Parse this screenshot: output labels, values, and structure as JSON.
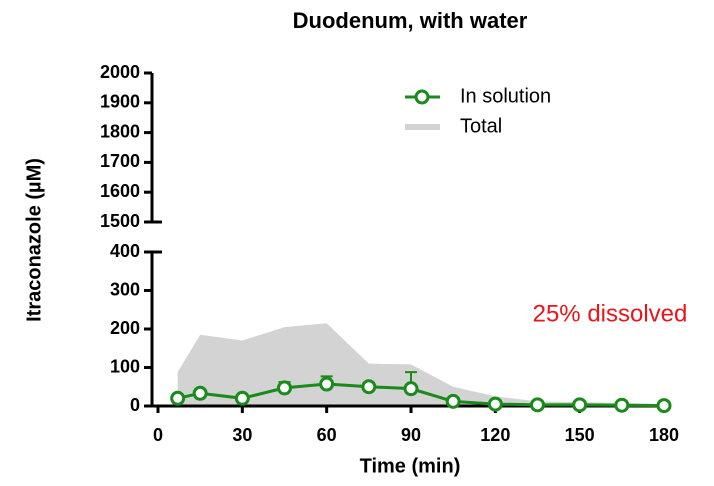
{
  "chart_data": {
    "type": "line",
    "title": "Duodenum, with water",
    "xlabel": "Time (min)",
    "ylabel": "Itraconazole (µM)",
    "xlim": [
      0,
      180
    ],
    "xticks": [
      0,
      30,
      60,
      90,
      120,
      150,
      180
    ],
    "yaxis_segments": [
      {
        "ylim": [
          0,
          400
        ],
        "yticks": [
          0,
          100,
          200,
          300,
          400
        ]
      },
      {
        "ylim": [
          1500,
          2000
        ],
        "yticks": [
          1500,
          1600,
          1700,
          1800,
          1900,
          2000
        ]
      }
    ],
    "series": [
      {
        "name": "In solution",
        "color": "#1a8a1a",
        "style": "line-marker",
        "x": [
          7,
          15,
          30,
          45,
          60,
          75,
          90,
          105,
          120,
          135,
          150,
          165,
          180
        ],
        "values": [
          20,
          33,
          20,
          47,
          57,
          50,
          45,
          12,
          5,
          3,
          3,
          2,
          1
        ],
        "errors": [
          3,
          5,
          3,
          15,
          20,
          10,
          43,
          5,
          3,
          2,
          2,
          1,
          1
        ]
      },
      {
        "name": "Total",
        "color": "#d3d3d3",
        "style": "area",
        "x": [
          7,
          15,
          30,
          45,
          60,
          75,
          90,
          105,
          120,
          135,
          150,
          165,
          180
        ],
        "values": [
          88,
          185,
          170,
          205,
          215,
          110,
          108,
          50,
          25,
          12,
          10,
          8,
          5
        ]
      }
    ],
    "annotations": [
      {
        "text": "25% dissolved",
        "color": "#e8161b"
      }
    ],
    "legend": "upper-right"
  }
}
